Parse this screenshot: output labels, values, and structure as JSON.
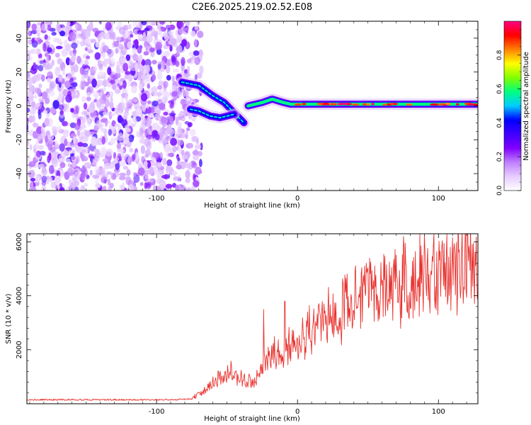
{
  "figure": {
    "title": "C2E6.2025.219.02.52.E08"
  },
  "colors": {
    "colormap_stops": [
      "#ffffff",
      "#e6ccff",
      "#c080ff",
      "#8000ff",
      "#4000ff",
      "#0000ff",
      "#00ccff",
      "#00ff80",
      "#80ff00",
      "#ffff00",
      "#ff8000",
      "#ff0000",
      "#ff0080"
    ],
    "snr_line": "#e8322e",
    "axis": "#000000"
  },
  "chart_data": [
    {
      "type": "heatmap",
      "xlabel": "Height of straight line (km)",
      "ylabel": "Frequency (Hz)",
      "xlim": [
        -192,
        128
      ],
      "ylim": [
        -50,
        50
      ],
      "xticks": [
        -100,
        0,
        100
      ],
      "yticks": [
        -40,
        -20,
        0,
        20,
        40
      ],
      "colorbar": {
        "label": "Normalized spectral amplitude",
        "range": [
          0,
          1
        ],
        "ticks": [
          "0.0",
          "0.2",
          "0.4",
          "0.6",
          "0.8"
        ]
      },
      "noise_region": {
        "x_from": -192,
        "x_to": -72,
        "amplitude": 0.25
      },
      "features": [
        {
          "name": "upper branch",
          "points": [
            [
              -82,
              14
            ],
            [
              -70,
              12
            ],
            [
              -60,
              6
            ],
            [
              -52,
              2
            ],
            [
              -45,
              -4
            ],
            [
              -38,
              -10
            ]
          ],
          "amplitude": 0.4
        },
        {
          "name": "lower branch",
          "points": [
            [
              -76,
              -2
            ],
            [
              -70,
              -3
            ],
            [
              -62,
              -6
            ],
            [
              -55,
              -7
            ],
            [
              -50,
              -6
            ],
            [
              -45,
              -5
            ]
          ],
          "amplitude": 0.35
        },
        {
          "name": "main trace",
          "points": [
            [
              -35,
              0
            ],
            [
              -25,
              2
            ],
            [
              -18,
              4
            ],
            [
              -10,
              2
            ],
            [
              -5,
              1
            ],
            [
              0,
              1
            ],
            [
              20,
              1
            ],
            [
              50,
              1
            ],
            [
              80,
              1
            ],
            [
              100,
              1
            ],
            [
              128,
              1
            ]
          ],
          "amplitude": 0.95
        }
      ]
    },
    {
      "type": "line",
      "xlabel": "Height of straight line (km)",
      "ylabel": "SNR (10 * v/v)",
      "xlim": [
        -192,
        128
      ],
      "ylim": [
        0,
        6300
      ],
      "xticks": [
        -100,
        0,
        100
      ],
      "yticks": [
        2000,
        4000,
        6000
      ],
      "series": [
        {
          "envelope": [
            {
              "x": -192,
              "y": 150
            },
            {
              "x": -90,
              "y": 150
            },
            {
              "x": -75,
              "y": 180
            },
            {
              "x": -65,
              "y": 500
            },
            {
              "x": -55,
              "y": 900
            },
            {
              "x": -48,
              "y": 1100
            },
            {
              "x": -42,
              "y": 900
            },
            {
              "x": -30,
              "y": 700
            },
            {
              "x": -24,
              "y": 1200
            },
            {
              "x": -15,
              "y": 1700
            },
            {
              "x": 0,
              "y": 2100
            },
            {
              "x": 20,
              "y": 2800
            },
            {
              "x": 40,
              "y": 3400
            },
            {
              "x": 60,
              "y": 3800
            },
            {
              "x": 80,
              "y": 4100
            },
            {
              "x": 100,
              "y": 4400
            },
            {
              "x": 128,
              "y": 4700
            }
          ],
          "noise_fraction": 0.45,
          "peaks": [
            {
              "x": -24,
              "y": 3500
            },
            {
              "x": -9,
              "y": 3800
            },
            {
              "x": 92,
              "y": 5200
            },
            {
              "x": 106,
              "y": 6300
            },
            {
              "x": 124,
              "y": 5900
            }
          ]
        }
      ]
    }
  ]
}
